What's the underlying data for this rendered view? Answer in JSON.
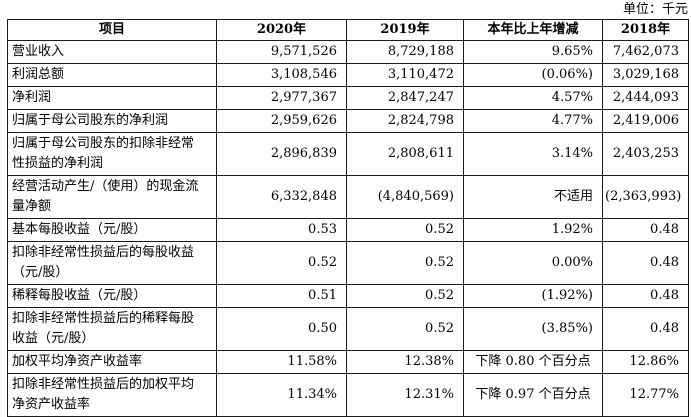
{
  "unit_label": "单位：千元",
  "table": {
    "headers": [
      "项目",
      "2020年",
      "2019年",
      "本年比上年增减",
      "2018年"
    ],
    "rows": [
      [
        "营业收入",
        "9,571,526",
        "8,729,188",
        "9.65%",
        "7,462,073"
      ],
      [
        "利润总额",
        "3,108,546",
        "3,110,472",
        "(0.06%)",
        "3,029,168"
      ],
      [
        "净利润",
        "2,977,367",
        "2,847,247",
        "4.57%",
        "2,444,093"
      ],
      [
        "归属于母公司股东的净利润",
        "2,959,626",
        "2,824,798",
        "4.77%",
        "2,419,006"
      ],
      [
        "归属于母公司股东的扣除非经常性损益的净利润",
        "2,896,839",
        "2,808,611",
        "3.14%",
        "2,403,253"
      ],
      [
        "经营活动产生/（使用）的现金流量净额",
        "6,332,848",
        "(4,840,569)",
        "不适用",
        "(2,363,993)"
      ],
      [
        "基本每股收益（元/股）",
        "0.53",
        "0.52",
        "1.92%",
        "0.48"
      ],
      [
        "扣除非经常性损益后的每股收益（元/股）",
        "0.52",
        "0.52",
        "0.00%",
        "0.48"
      ],
      [
        "稀释每股收益（元/股）",
        "0.51",
        "0.52",
        "(1.92%)",
        "0.48"
      ],
      [
        "扣除非经常性损益后的稀释每股收益（元/股）",
        "0.50",
        "0.52",
        "(3.85%)",
        "0.48"
      ],
      [
        "加权平均净资产收益率",
        "11.58%",
        "12.38%",
        "下降 0.80 个百分点",
        "12.86%"
      ],
      [
        "扣除非经常性损益后的加权平均净资产收益率",
        "11.34%",
        "12.31%",
        "下降 0.97 个百分点",
        "12.77%"
      ]
    ],
    "centered_change_cells": [
      "下降 0.80 个百分点",
      "下降 0.97 个百分点"
    ]
  }
}
